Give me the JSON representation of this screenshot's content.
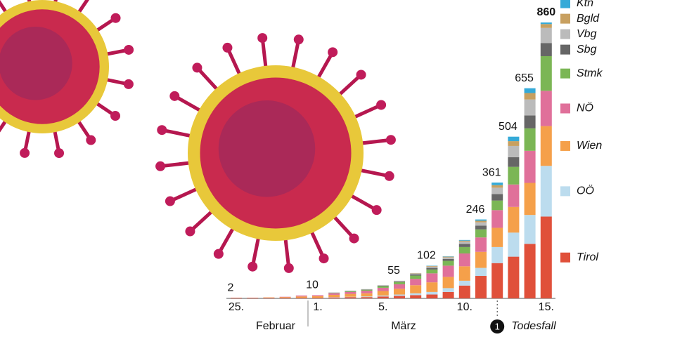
{
  "chart_data": {
    "type": "stacked-bar",
    "categories": [
      "25.",
      null,
      null,
      null,
      null,
      "1.",
      null,
      null,
      null,
      "5.",
      null,
      null,
      null,
      null,
      "10.",
      null,
      null,
      null,
      null,
      "15."
    ],
    "months": [
      "Februar",
      "März"
    ],
    "totals": [
      2,
      null,
      null,
      null,
      null,
      10,
      null,
      null,
      null,
      null,
      55,
      null,
      102,
      null,
      null,
      246,
      361,
      504,
      655,
      860
    ],
    "annotation": {
      "number": "1",
      "text": "Todesfall"
    },
    "series": [
      {
        "name": "Tirol",
        "color": "#e0503a",
        "values": [
          2,
          2,
          2,
          2,
          2,
          2,
          3,
          4,
          4,
          6,
          8,
          10,
          12,
          20,
          40,
          70,
          110,
          130,
          170,
          255
        ]
      },
      {
        "name": "OÖ",
        "color": "#bcdcee",
        "values": [
          0,
          0,
          0,
          0,
          0,
          0,
          1,
          1,
          2,
          3,
          4,
          6,
          8,
          12,
          15,
          25,
          50,
          75,
          90,
          158
        ]
      },
      {
        "name": "Wien",
        "color": "#f5a04a",
        "values": [
          0,
          0,
          1,
          2,
          4,
          5,
          7,
          9,
          10,
          14,
          18,
          25,
          30,
          35,
          45,
          50,
          60,
          80,
          100,
          124
        ]
      },
      {
        "name": "NÖ",
        "color": "#e0709a",
        "values": [
          0,
          0,
          0,
          1,
          3,
          3,
          5,
          6,
          8,
          10,
          14,
          20,
          28,
          35,
          40,
          45,
          55,
          70,
          100,
          110
        ]
      },
      {
        "name": "Stmk",
        "color": "#7bb655",
        "values": [
          0,
          0,
          0,
          0,
          0,
          0,
          1,
          2,
          3,
          5,
          7,
          10,
          12,
          15,
          20,
          25,
          30,
          55,
          70,
          108
        ]
      },
      {
        "name": "Sbg",
        "color": "#666666",
        "values": [
          0,
          0,
          0,
          0,
          0,
          0,
          1,
          1,
          1,
          2,
          2,
          4,
          5,
          6,
          10,
          12,
          20,
          30,
          40,
          41
        ]
      },
      {
        "name": "Vbg",
        "color": "#bbbbbb",
        "values": [
          0,
          0,
          0,
          0,
          0,
          0,
          0,
          1,
          1,
          1,
          2,
          3,
          4,
          5,
          7,
          10,
          20,
          35,
          50,
          47
        ]
      },
      {
        "name": "Bgld",
        "color": "#c8a060",
        "values": [
          0,
          0,
          0,
          0,
          0,
          0,
          0,
          0,
          0,
          0,
          0,
          1,
          2,
          2,
          3,
          5,
          8,
          15,
          20,
          12
        ]
      },
      {
        "name": "Ktn",
        "color": "#35aad8",
        "values": [
          0,
          0,
          0,
          0,
          0,
          0,
          0,
          0,
          0,
          0,
          0,
          0,
          1,
          1,
          2,
          4,
          8,
          14,
          15,
          5
        ]
      }
    ]
  }
}
